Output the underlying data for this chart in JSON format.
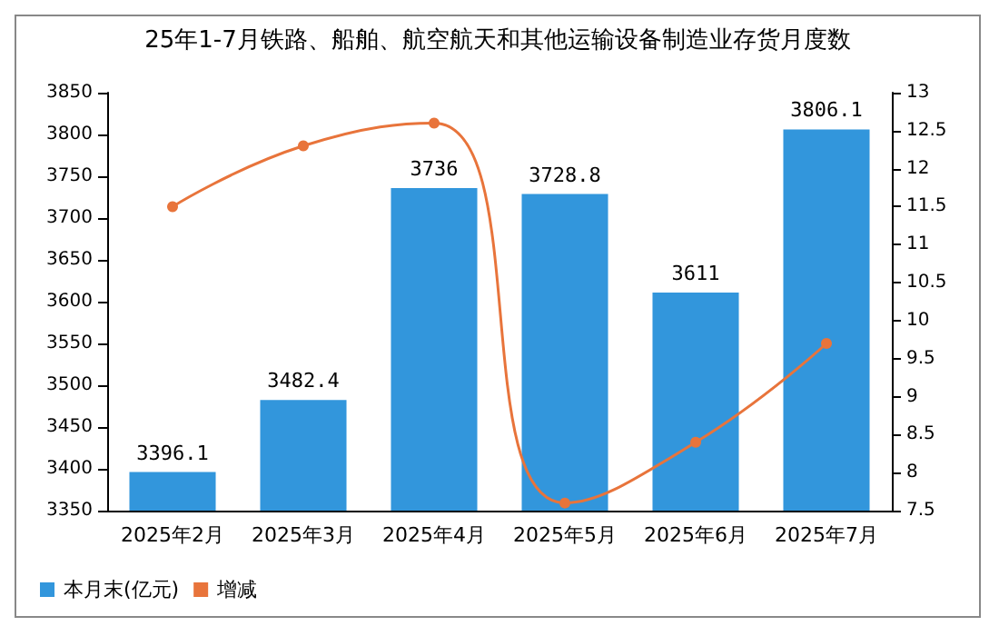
{
  "chart_data": {
    "type": "bar",
    "title": "25年1-7月铁路、船舶、航空航天和其他运输设备制造业存货月度数",
    "categories": [
      "2025年2月",
      "2025年3月",
      "2025年4月",
      "2025年5月",
      "2025年6月",
      "2025年7月"
    ],
    "series": [
      {
        "name": "本月末(亿元)",
        "color": "#3296dc",
        "values": [
          3396.1,
          3482.4,
          3736,
          3728.8,
          3611,
          3806.1
        ],
        "value_labels": [
          "3396.1",
          "3482.4",
          "3736",
          "3728.8",
          "3611",
          "3806.1"
        ]
      },
      {
        "name": "增减",
        "type": "line",
        "axis": "y2",
        "color": "#e8743b",
        "values": [
          11.5,
          12.3,
          12.6,
          7.6,
          8.4,
          9.7
        ]
      }
    ],
    "ylim": [
      3350,
      3850
    ],
    "yticks": [
      3350,
      3400,
      3450,
      3500,
      3550,
      3600,
      3650,
      3700,
      3750,
      3800,
      3850
    ],
    "y2lim": [
      7.5,
      13
    ],
    "y2ticks": [
      7.5,
      8,
      8.5,
      9,
      9.5,
      10,
      10.5,
      11,
      11.5,
      12,
      12.5,
      13
    ],
    "grid": false,
    "legend": "bottom left",
    "marker": "circle"
  }
}
